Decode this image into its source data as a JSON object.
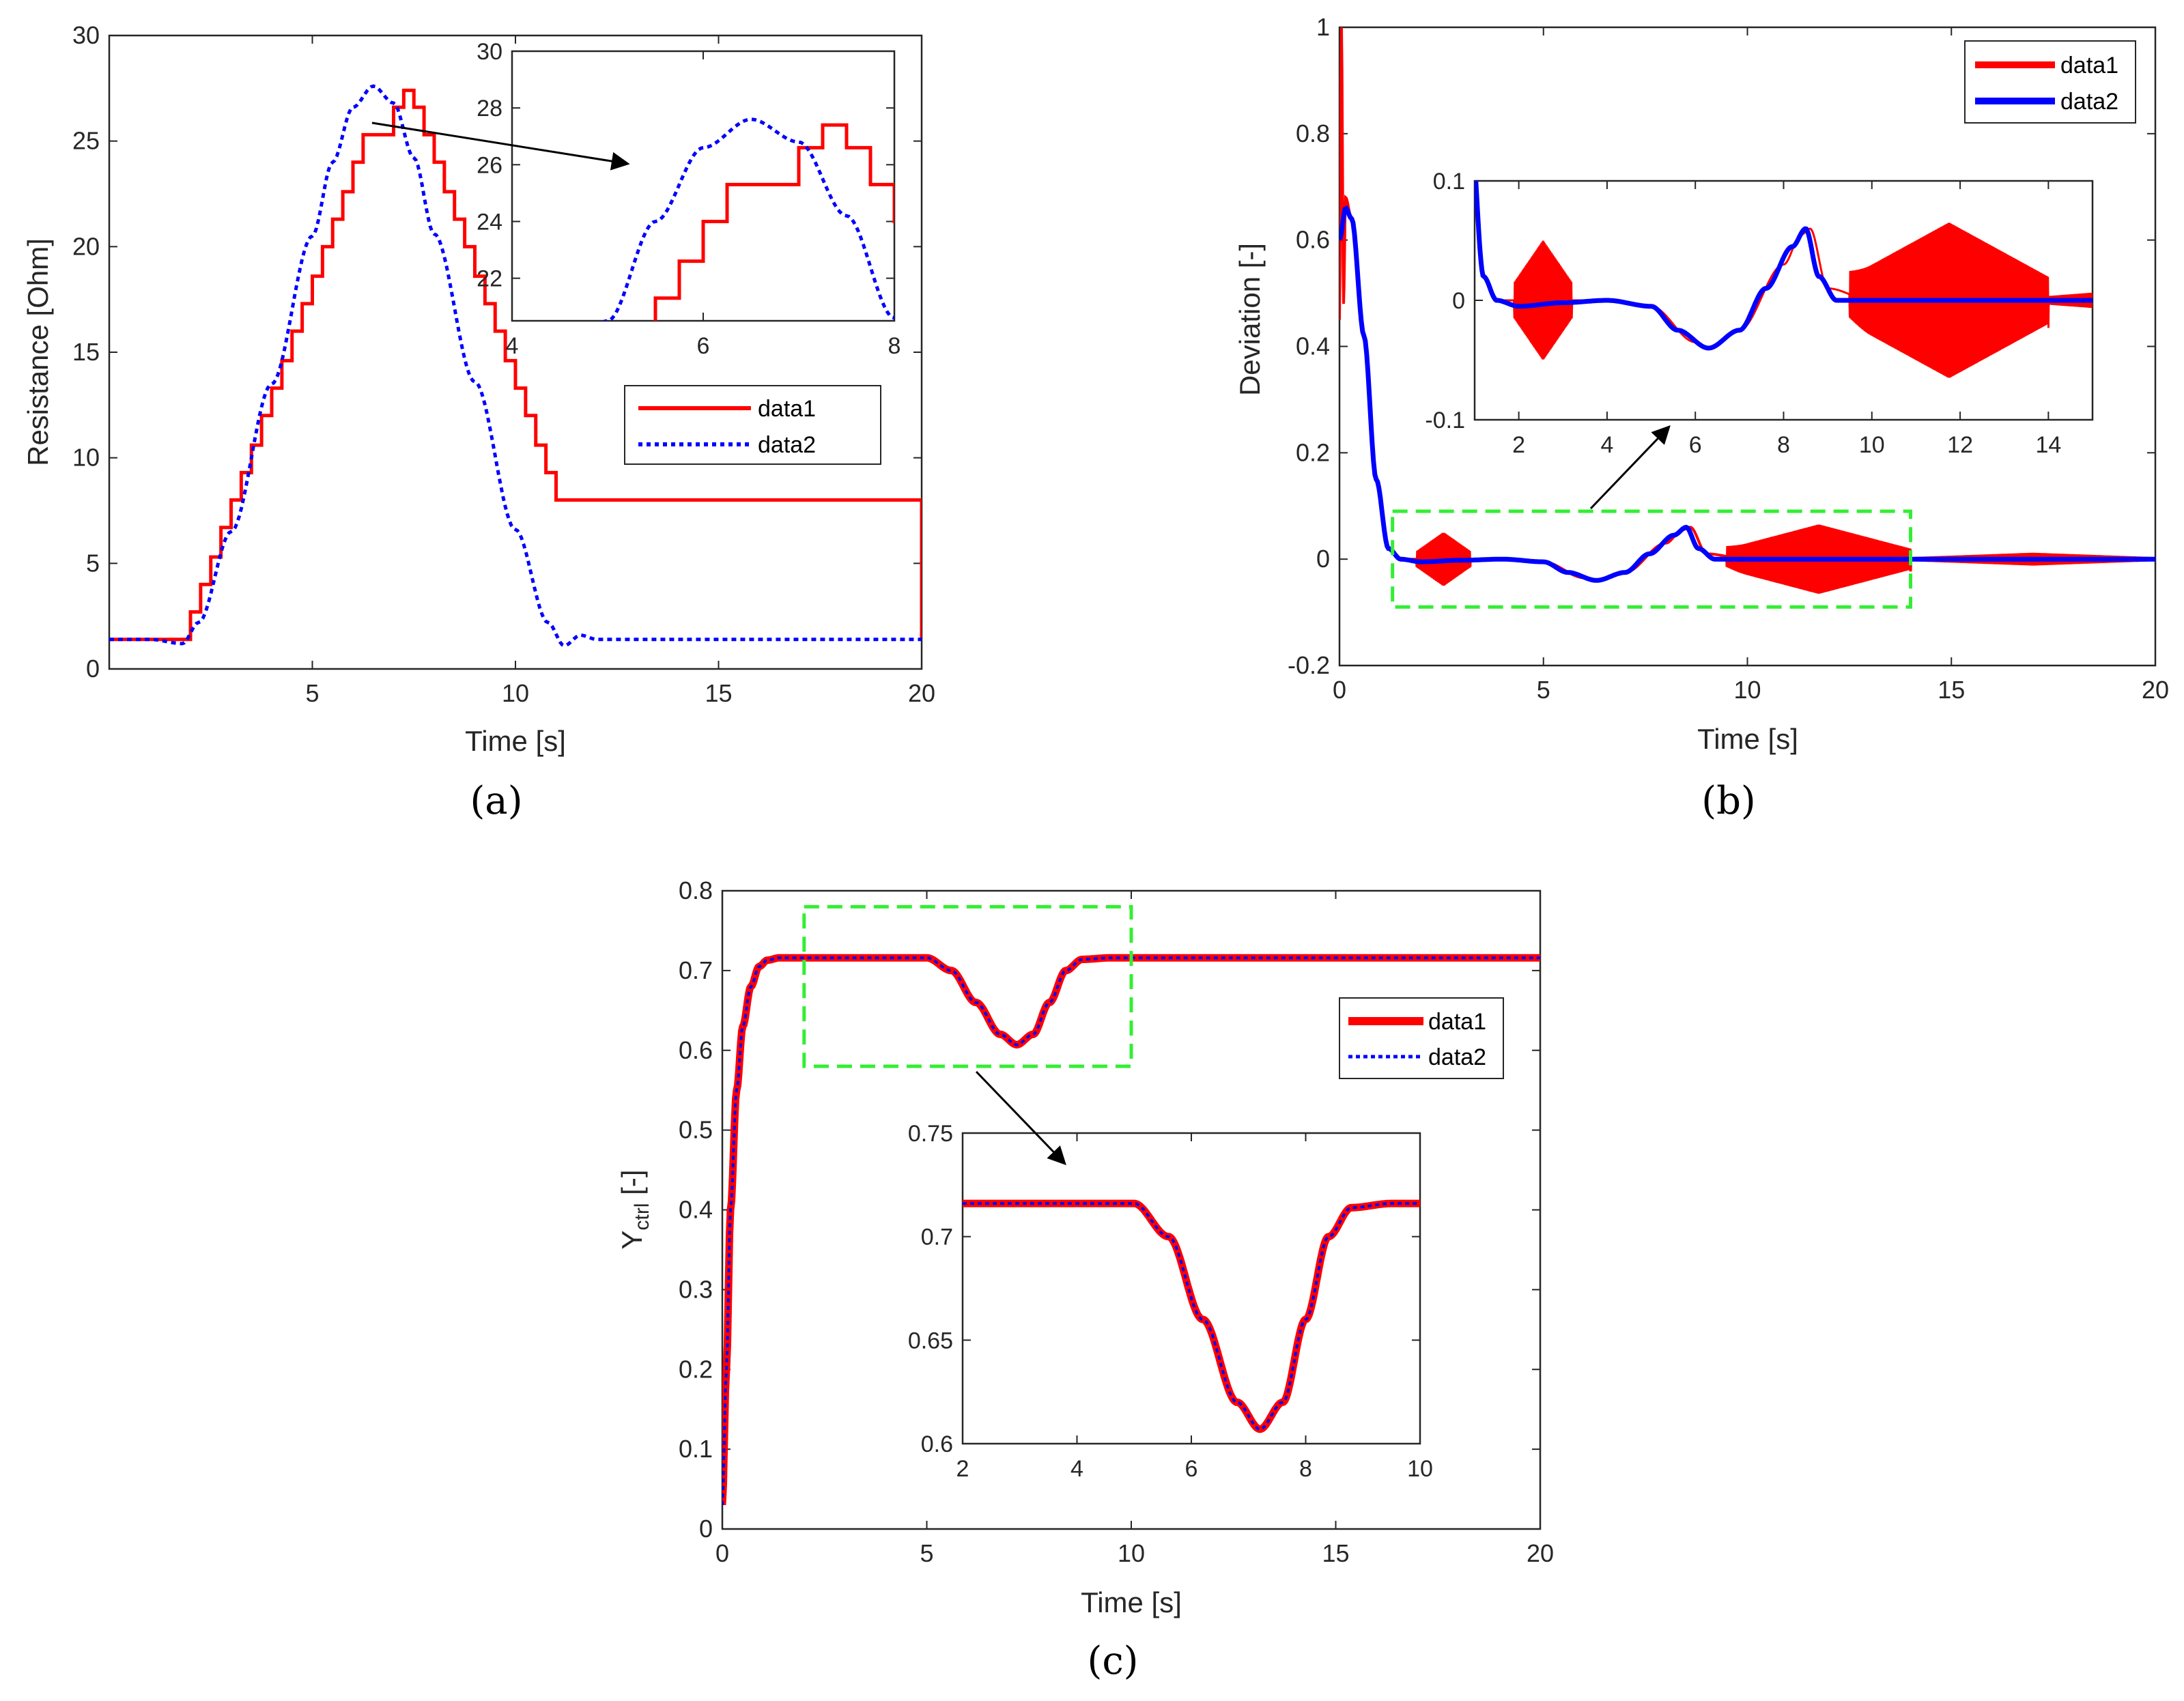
{
  "colors": {
    "data1": "#ff0000",
    "data2": "#0000ff",
    "zoom_box": "#33ee33",
    "axis": "#262626"
  },
  "captions": [
    "(a)",
    "(b)",
    "(c)"
  ],
  "chart_data": [
    {
      "id": "a",
      "type": "line",
      "caption": "(a)",
      "xlabel": "Time [s]",
      "ylabel": "Resistance [Ohm]",
      "xlim": [
        0,
        20
      ],
      "ylim": [
        0,
        30
      ],
      "xticks": [
        5,
        10,
        15,
        20
      ],
      "yticks": [
        0,
        5,
        10,
        15,
        20,
        25,
        30
      ],
      "legend": [
        "data1",
        "data2"
      ],
      "legend_position": "inside-right",
      "series": [
        {
          "name": "data1",
          "style": "solid-stairs",
          "x": [
            0,
            2,
            2.25,
            2.5,
            2.75,
            3,
            3.25,
            3.5,
            3.75,
            4,
            4.25,
            4.5,
            4.75,
            5,
            5.25,
            5.5,
            5.75,
            6,
            6.25,
            7,
            7.25,
            7.5,
            7.75,
            8,
            8.25,
            8.5,
            8.75,
            9,
            9.25,
            9.5,
            9.75,
            10,
            10.25,
            10.5,
            10.75,
            11,
            20
          ],
          "y": [
            1.4,
            2.7,
            4.0,
            5.3,
            6.7,
            8.0,
            9.3,
            10.6,
            12.0,
            13.3,
            14.6,
            16.0,
            17.3,
            18.6,
            20.0,
            21.3,
            22.6,
            24.0,
            25.3,
            26.6,
            27.4,
            26.6,
            25.3,
            24.0,
            22.6,
            21.3,
            20.0,
            18.6,
            17.3,
            16.0,
            14.6,
            13.3,
            12.0,
            10.6,
            9.3,
            8.0,
            1.4
          ]
        },
        {
          "name": "data2",
          "style": "dotted-smooth",
          "x": [
            0,
            1,
            1.8,
            2.2,
            3,
            4,
            5,
            5.5,
            6,
            6.5,
            7,
            7.5,
            8,
            9,
            10,
            10.8,
            11.2,
            11.6,
            12,
            13,
            20
          ],
          "y": [
            1.4,
            1.4,
            1.2,
            2.2,
            6.5,
            13.5,
            20.5,
            24.0,
            26.6,
            27.6,
            26.8,
            24.2,
            20.6,
            13.6,
            6.6,
            2.2,
            1.1,
            1.6,
            1.4,
            1.4,
            1.4
          ]
        }
      ],
      "inset": {
        "xlim": [
          4,
          8
        ],
        "ylim": [
          20.5,
          30
        ],
        "xticks": [
          4,
          6,
          8
        ],
        "yticks": [
          22,
          24,
          26,
          28,
          30
        ]
      }
    },
    {
      "id": "b",
      "type": "line",
      "caption": "(b)",
      "xlabel": "Time [s]",
      "ylabel": "Deviation [-]",
      "xlim": [
        0,
        20
      ],
      "ylim": [
        -0.2,
        1
      ],
      "xticks": [
        0,
        5,
        10,
        15,
        20
      ],
      "yticks": [
        -0.2,
        0,
        0.2,
        0.4,
        0.6,
        0.8,
        1
      ],
      "legend": [
        "data1",
        "data2"
      ],
      "legend_position": "top-right",
      "series": [
        {
          "name": "data1",
          "style": "solid-thick-oscillating",
          "x": [
            0,
            0.05,
            0.1,
            0.15,
            0.3,
            0.6,
            0.9,
            1.2,
            1.5,
            2,
            3,
            4,
            5,
            6,
            6.3,
            7,
            8,
            8.4,
            8.6,
            9,
            10,
            11,
            12,
            13,
            14,
            20
          ],
          "y": [
            0.45,
            1.0,
            0.48,
            0.68,
            0.64,
            0.42,
            0.15,
            0.02,
            0.0,
            0.0,
            0.0,
            0.0,
            -0.005,
            -0.035,
            -0.04,
            -0.025,
            0.03,
            0.055,
            0.06,
            0.01,
            0.0,
            0.0,
            0.0,
            0.0,
            0.0,
            0.0
          ],
          "oscillation_bursts": [
            [
              1.9,
              3.2,
              0.05
            ],
            [
              9.5,
              14,
              0.065
            ],
            [
              14,
              20,
              0.012
            ]
          ]
        },
        {
          "name": "data2",
          "style": "solid-thick",
          "x": [
            0,
            0.15,
            0.3,
            0.6,
            0.9,
            1.2,
            1.5,
            2,
            3,
            4,
            5,
            5.6,
            6.3,
            7,
            7.6,
            8.2,
            8.5,
            8.8,
            9.2,
            10,
            20
          ],
          "y": [
            0.6,
            0.66,
            0.64,
            0.42,
            0.15,
            0.02,
            0.0,
            -0.005,
            -0.002,
            0.0,
            -0.005,
            -0.025,
            -0.04,
            -0.025,
            0.01,
            0.045,
            0.06,
            0.02,
            0.0,
            0.0,
            0.0
          ]
        }
      ],
      "zoom_box": {
        "x": [
          1.3,
          14
        ],
        "y": [
          -0.09,
          0.09
        ]
      },
      "inset": {
        "xlim": [
          1,
          15
        ],
        "ylim": [
          -0.1,
          0.1
        ],
        "xticks": [
          2,
          4,
          6,
          8,
          10,
          12,
          14
        ],
        "yticks": [
          -0.1,
          0,
          0.1
        ]
      }
    },
    {
      "id": "c",
      "type": "line",
      "caption": "(c)",
      "xlabel": "Time [s]",
      "ylabel": "Y",
      "ylabel_subscript": "ctrl",
      "ylabel_suffix": " [-]",
      "xlim": [
        0,
        20
      ],
      "ylim": [
        0,
        0.8
      ],
      "xticks": [
        0,
        5,
        10,
        15,
        20
      ],
      "yticks": [
        0,
        0.1,
        0.2,
        0.3,
        0.4,
        0.5,
        0.6,
        0.7,
        0.8
      ],
      "legend": [
        "data1",
        "data2"
      ],
      "legend_position": "right",
      "series": [
        {
          "name": "data1",
          "style": "solid-thick",
          "x": [
            0,
            0.1,
            0.2,
            0.35,
            0.5,
            0.7,
            0.9,
            1.1,
            1.4,
            2,
            4,
            5,
            5.6,
            6.2,
            6.8,
            7.2,
            7.6,
            8,
            8.4,
            8.8,
            9.5,
            20
          ],
          "y": [
            0.03,
            0.2,
            0.4,
            0.55,
            0.63,
            0.68,
            0.705,
            0.713,
            0.716,
            0.716,
            0.716,
            0.716,
            0.7,
            0.66,
            0.62,
            0.607,
            0.62,
            0.66,
            0.7,
            0.714,
            0.716,
            0.716
          ]
        },
        {
          "name": "data2",
          "style": "dotted",
          "x": [
            0,
            0.1,
            0.2,
            0.35,
            0.5,
            0.7,
            0.9,
            1.1,
            1.4,
            2,
            4,
            5,
            5.6,
            6.2,
            6.8,
            7.2,
            7.6,
            8,
            8.4,
            8.8,
            9.5,
            20
          ],
          "y": [
            0.03,
            0.2,
            0.4,
            0.55,
            0.63,
            0.68,
            0.705,
            0.713,
            0.716,
            0.716,
            0.716,
            0.716,
            0.7,
            0.66,
            0.62,
            0.607,
            0.62,
            0.66,
            0.7,
            0.714,
            0.716,
            0.716
          ]
        }
      ],
      "zoom_box": {
        "x": [
          2,
          10
        ],
        "y": [
          0.58,
          0.78
        ]
      },
      "inset": {
        "xlim": [
          2,
          10
        ],
        "ylim": [
          0.6,
          0.75
        ],
        "xticks": [
          2,
          4,
          6,
          8,
          10
        ],
        "yticks": [
          0.6,
          0.65,
          0.7,
          0.75
        ]
      }
    }
  ]
}
